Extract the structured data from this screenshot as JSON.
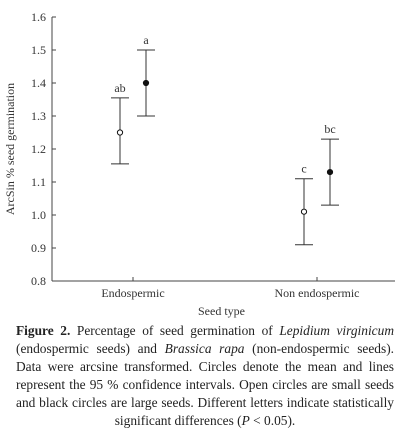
{
  "chart_data": {
    "type": "scatter",
    "xlabel": "Seed type",
    "ylabel": "ArcSin % seed germination",
    "ylim": [
      0.8,
      1.6
    ],
    "yticks": [
      0.8,
      0.9,
      1.0,
      1.1,
      1.2,
      1.3,
      1.4,
      1.5,
      1.6
    ],
    "ytick_labels": [
      "0.8",
      "0.9",
      "1.0",
      "1.1",
      "1.2",
      "1.3",
      "1.4",
      "1.5",
      "1.6"
    ],
    "categories": [
      "Endospermic",
      "Non endospermic"
    ],
    "grid": false,
    "points": [
      {
        "category": "Endospermic",
        "size": "small",
        "mean": 1.25,
        "lower": 1.155,
        "upper": 1.355,
        "label": "ab",
        "marker": "open"
      },
      {
        "category": "Endospermic",
        "size": "large",
        "mean": 1.4,
        "lower": 1.3,
        "upper": 1.5,
        "label": "a",
        "marker": "filled"
      },
      {
        "category": "Non endospermic",
        "size": "small",
        "mean": 1.01,
        "lower": 0.91,
        "upper": 1.11,
        "label": "c",
        "marker": "open"
      },
      {
        "category": "Non endospermic",
        "size": "large",
        "mean": 1.13,
        "lower": 1.03,
        "upper": 1.23,
        "label": "bc",
        "marker": "filled"
      }
    ]
  },
  "caption": {
    "label": "Figure 2.",
    "p1": " Percentage of seed germination of ",
    "species1": "Lepidium virginicum",
    "p2": " (endospermic seeds) and ",
    "species2": "Brassica rapa",
    "p3": " (non-endospermic seeds). Data were arcsine transformed. Circles denote the mean and lines represent the 95 % confidence intervals. Open circles are small seeds and black circles are large seeds. Different letters indicate statistically significant differences (",
    "pvar": "P",
    "p4": " < 0.05)."
  }
}
